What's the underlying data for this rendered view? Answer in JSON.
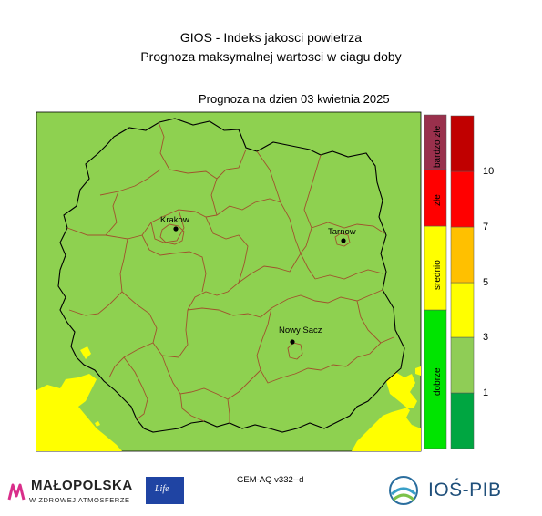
{
  "header": {
    "title": "GIOS - Indeks jakosci powietrza",
    "subtitle": "Prognoza maksymalnej wartosci w ciagu doby",
    "forecast_date": "Prognoza na dzien  03 kwietnia 2025"
  },
  "cities": [
    {
      "name": "Krakow"
    },
    {
      "name": "Tarnow"
    },
    {
      "name": "Nowy Sacz"
    }
  ],
  "index_categories": [
    {
      "label": "dobrze",
      "color": "#00e400"
    },
    {
      "label": "srednio",
      "color": "#ffff00"
    },
    {
      "label": "złe",
      "color": "#ff0000"
    },
    {
      "label": "bardzo złe",
      "color": "#99304c"
    }
  ],
  "colorbar": {
    "colors": [
      "#00a641",
      "#8fcd56",
      "#ffff00",
      "#ffc000",
      "#ff0000",
      "#c00000"
    ],
    "tick_labels": [
      "1",
      "3",
      "5",
      "7",
      "10"
    ]
  },
  "map_colors": {
    "good_area": "#8ed150",
    "moderate_area": "#ffff00"
  },
  "footer": {
    "model_label": "GEM-AQ v332--d",
    "malopolska_title": "MAŁOPOLSKA",
    "malopolska_subtitle": "W ZDROWEJ ATMOSFERZE",
    "ios_logo_text": "IOŚ-PIB",
    "eu_logo_text": "Life"
  }
}
